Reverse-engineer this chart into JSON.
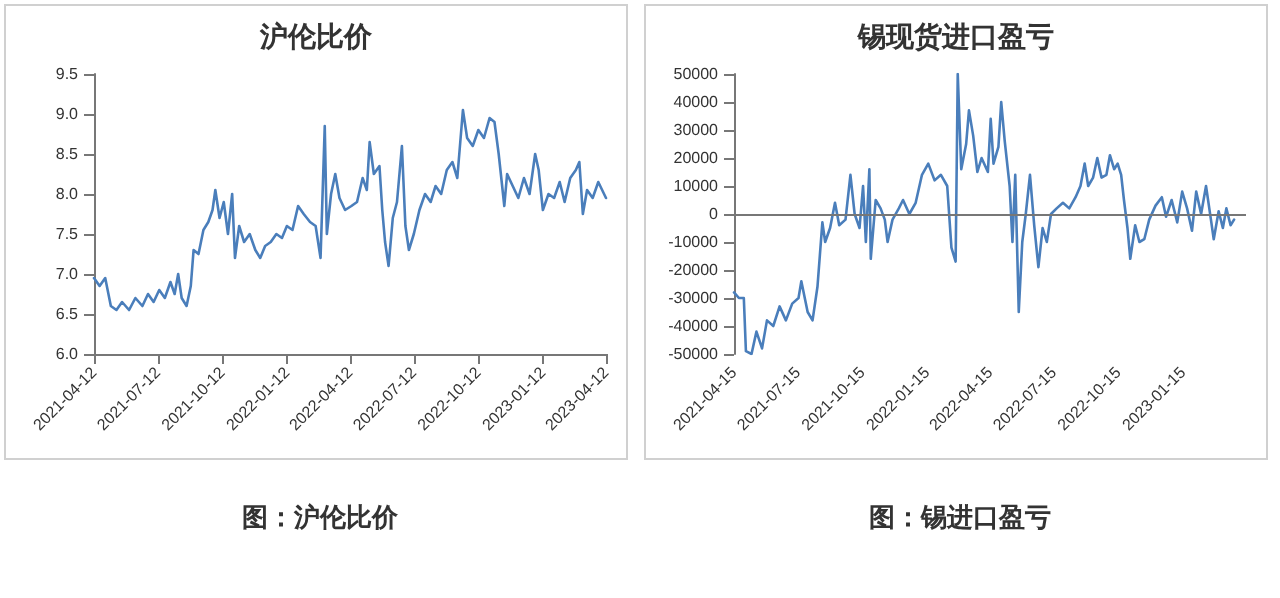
{
  "chart_data": [
    {
      "type": "line",
      "title": "沪伦比价",
      "annotations": [
        "图：沪伦比价"
      ],
      "grid": false,
      "marker": "none",
      "line_style": "solid",
      "xlim": [
        "2021-04-12",
        "2023-04-12"
      ],
      "xticks": [
        "2021-04-12",
        "2021-07-12",
        "2021-10-12",
        "2022-01-12",
        "2022-04-12",
        "2022-07-12",
        "2022-10-12",
        "2023-01-12",
        "2023-04-12"
      ],
      "ylim": [
        6,
        9.5
      ],
      "yticks": [
        {
          "value": 6,
          "label": "6.0"
        },
        {
          "value": 6.5,
          "label": "6.5"
        },
        {
          "value": 7,
          "label": "7.0"
        },
        {
          "value": 7.5,
          "label": "7.5"
        },
        {
          "value": 8,
          "label": "8.0"
        },
        {
          "value": 8.5,
          "label": "8.5"
        },
        {
          "value": 9,
          "label": "9.0"
        },
        {
          "value": 9.5,
          "label": "9.5"
        }
      ],
      "x": [
        "2021-04-12",
        "2021-04-20",
        "2021-04-28",
        "2021-05-06",
        "2021-05-14",
        "2021-05-22",
        "2021-06-01",
        "2021-06-10",
        "2021-06-20",
        "2021-06-28",
        "2021-07-06",
        "2021-07-14",
        "2021-07-22",
        "2021-07-30",
        "2021-08-05",
        "2021-08-10",
        "2021-08-15",
        "2021-08-22",
        "2021-08-28",
        "2021-09-01",
        "2021-09-08",
        "2021-09-15",
        "2021-09-22",
        "2021-09-28",
        "2021-10-02",
        "2021-10-08",
        "2021-10-14",
        "2021-10-20",
        "2021-10-26",
        "2021-10-30",
        "2021-11-05",
        "2021-11-12",
        "2021-11-20",
        "2021-11-28",
        "2021-12-05",
        "2021-12-12",
        "2021-12-20",
        "2021-12-28",
        "2022-01-05",
        "2022-01-12",
        "2022-01-20",
        "2022-01-28",
        "2022-02-05",
        "2022-02-14",
        "2022-02-22",
        "2022-03-01",
        "2022-03-07",
        "2022-03-10",
        "2022-03-16",
        "2022-03-22",
        "2022-03-28",
        "2022-04-05",
        "2022-04-14",
        "2022-04-22",
        "2022-04-30",
        "2022-05-06",
        "2022-05-10",
        "2022-05-16",
        "2022-05-24",
        "2022-05-28",
        "2022-06-01",
        "2022-06-06",
        "2022-06-12",
        "2022-06-18",
        "2022-06-25",
        "2022-06-30",
        "2022-07-05",
        "2022-07-12",
        "2022-07-20",
        "2022-07-28",
        "2022-08-05",
        "2022-08-12",
        "2022-08-20",
        "2022-08-28",
        "2022-09-05",
        "2022-09-12",
        "2022-09-20",
        "2022-09-26",
        "2022-10-04",
        "2022-10-12",
        "2022-10-20",
        "2022-10-28",
        "2022-11-04",
        "2022-11-10",
        "2022-11-18",
        "2022-11-22",
        "2022-11-30",
        "2022-12-08",
        "2022-12-16",
        "2022-12-24",
        "2023-01-01",
        "2023-01-06",
        "2023-01-12",
        "2023-01-20",
        "2023-01-28",
        "2023-02-05",
        "2023-02-12",
        "2023-02-20",
        "2023-02-28",
        "2023-03-05",
        "2023-03-10",
        "2023-03-16",
        "2023-03-24",
        "2023-04-01",
        "2023-04-12"
      ],
      "series": [
        {
          "color": "#4a7ebb",
          "values": [
            6.95,
            6.85,
            6.95,
            6.6,
            6.55,
            6.65,
            6.55,
            6.7,
            6.6,
            6.75,
            6.65,
            6.8,
            6.7,
            6.9,
            6.75,
            7.0,
            6.7,
            6.6,
            6.85,
            7.3,
            7.25,
            7.55,
            7.65,
            7.8,
            8.05,
            7.7,
            7.9,
            7.5,
            8.0,
            7.2,
            7.6,
            7.4,
            7.5,
            7.3,
            7.2,
            7.35,
            7.4,
            7.5,
            7.45,
            7.6,
            7.55,
            7.85,
            7.75,
            7.65,
            7.6,
            7.2,
            8.85,
            7.5,
            8.0,
            8.25,
            7.95,
            7.8,
            7.85,
            7.9,
            8.2,
            8.05,
            8.65,
            8.25,
            8.35,
            7.8,
            7.4,
            7.1,
            7.7,
            7.9,
            8.6,
            7.6,
            7.3,
            7.5,
            7.8,
            8.0,
            7.9,
            8.1,
            8.0,
            8.3,
            8.4,
            8.2,
            9.05,
            8.7,
            8.6,
            8.8,
            8.7,
            8.95,
            8.9,
            8.5,
            7.85,
            8.25,
            8.1,
            7.95,
            8.2,
            8.0,
            8.5,
            8.3,
            7.8,
            8.0,
            7.95,
            8.15,
            7.9,
            8.2,
            8.3,
            8.4,
            7.75,
            8.05,
            7.95,
            8.15,
            7.95
          ]
        }
      ]
    },
    {
      "type": "line",
      "title": "锡现货进口盈亏",
      "annotations": [
        "图：锡进口盈亏"
      ],
      "grid": false,
      "marker": "none",
      "line_style": "solid",
      "ref_lines": [
        {
          "axis": "y",
          "value": 0,
          "color": "#777777"
        }
      ],
      "xlim": [
        "2021-04-15",
        "2023-04-15"
      ],
      "xticks": [
        "2021-04-15",
        "2021-07-15",
        "2021-10-15",
        "2022-01-15",
        "2022-04-15",
        "2022-07-15",
        "2022-10-15",
        "2023-01-15"
      ],
      "ylim": [
        -50000,
        50000
      ],
      "yticks": [
        -50000,
        -40000,
        -30000,
        -20000,
        -10000,
        0,
        10000,
        20000,
        30000,
        40000,
        50000
      ],
      "x": [
        "2021-04-15",
        "2021-04-22",
        "2021-04-29",
        "2021-05-02",
        "2021-05-10",
        "2021-05-17",
        "2021-05-25",
        "2021-06-01",
        "2021-06-10",
        "2021-06-19",
        "2021-06-28",
        "2021-07-07",
        "2021-07-16",
        "2021-07-20",
        "2021-07-29",
        "2021-08-05",
        "2021-08-12",
        "2021-08-19",
        "2021-08-23",
        "2021-08-30",
        "2021-09-06",
        "2021-09-12",
        "2021-09-21",
        "2021-09-28",
        "2021-10-04",
        "2021-10-11",
        "2021-10-16",
        "2021-10-20",
        "2021-10-25",
        "2021-10-27",
        "2021-11-03",
        "2021-11-10",
        "2021-11-16",
        "2021-11-20",
        "2021-11-27",
        "2021-12-06",
        "2021-12-12",
        "2021-12-21",
        "2021-12-30",
        "2022-01-08",
        "2022-01-17",
        "2022-01-26",
        "2022-02-04",
        "2022-02-13",
        "2022-02-19",
        "2022-02-25",
        "2022-02-28",
        "2022-03-05",
        "2022-03-12",
        "2022-03-16",
        "2022-03-22",
        "2022-03-28",
        "2022-04-03",
        "2022-04-12",
        "2022-04-16",
        "2022-04-20",
        "2022-04-27",
        "2022-05-01",
        "2022-05-06",
        "2022-05-13",
        "2022-05-17",
        "2022-05-21",
        "2022-05-26",
        "2022-05-31",
        "2022-06-05",
        "2022-06-11",
        "2022-06-17",
        "2022-06-23",
        "2022-06-29",
        "2022-07-05",
        "2022-07-11",
        "2022-07-19",
        "2022-07-28",
        "2022-08-06",
        "2022-08-15",
        "2022-08-22",
        "2022-08-28",
        "2022-09-02",
        "2022-09-09",
        "2022-09-15",
        "2022-09-21",
        "2022-09-28",
        "2022-10-03",
        "2022-10-09",
        "2022-10-14",
        "2022-10-19",
        "2022-10-23",
        "2022-10-28",
        "2022-11-01",
        "2022-11-08",
        "2022-11-14",
        "2022-11-21",
        "2022-11-28",
        "2022-12-07",
        "2022-12-16",
        "2022-12-22",
        "2022-12-30",
        "2023-01-07",
        "2023-01-14",
        "2023-01-21",
        "2023-01-28",
        "2023-02-03",
        "2023-02-10",
        "2023-02-17",
        "2023-02-24",
        "2023-02-28",
        "2023-03-07",
        "2023-03-13",
        "2023-03-18",
        "2023-03-24",
        "2023-03-29"
      ],
      "series": [
        {
          "color": "#4a7ebb",
          "values": [
            -28000,
            -30000,
            -30000,
            -49000,
            -50000,
            -42000,
            -48000,
            -38000,
            -40000,
            -33000,
            -38000,
            -32000,
            -30000,
            -24000,
            -35000,
            -38000,
            -26000,
            -3000,
            -10000,
            -5000,
            4000,
            -4000,
            -2000,
            14000,
            0,
            -5000,
            10000,
            -10000,
            16000,
            -16000,
            5000,
            2000,
            -2000,
            -10000,
            -2000,
            2000,
            5000,
            0,
            4000,
            14000,
            18000,
            12000,
            14000,
            10000,
            -12000,
            -17000,
            50000,
            16000,
            25000,
            37000,
            28000,
            15000,
            20000,
            15000,
            34000,
            18000,
            24000,
            40000,
            26000,
            10000,
            -10000,
            14000,
            -35000,
            -10000,
            0,
            14000,
            -4000,
            -19000,
            -5000,
            -10000,
            0,
            2000,
            4000,
            2000,
            6000,
            10000,
            18000,
            10000,
            13000,
            20000,
            13000,
            14000,
            21000,
            16000,
            18000,
            14000,
            5000,
            -5000,
            -16000,
            -4000,
            -10000,
            -9000,
            -2000,
            3000,
            6000,
            -1000,
            5000,
            -3000,
            8000,
            2000,
            -6000,
            8000,
            0,
            10000,
            -2000,
            -9000,
            1000,
            -5000,
            2000,
            -4000,
            -2000
          ]
        }
      ]
    }
  ]
}
